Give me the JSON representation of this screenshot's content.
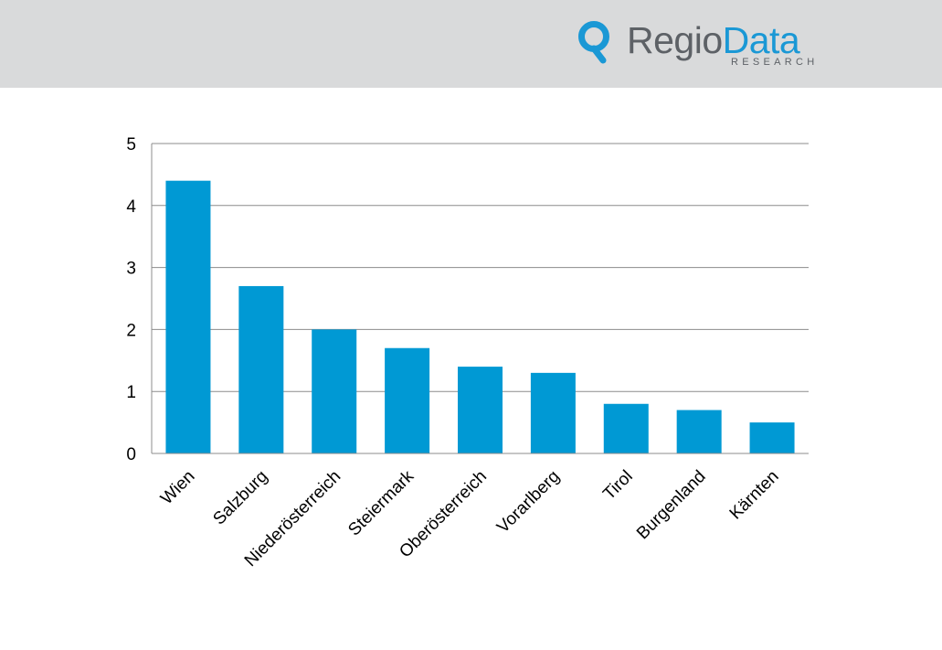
{
  "brand": {
    "name_part1": "Regio",
    "name_part2": "Data",
    "sub": "RESEARCH",
    "colors": {
      "primary": "#1a98d5",
      "grey": "#5d6166",
      "header_bg": "#d9dadb"
    },
    "icon": "location-pin-icon"
  },
  "chart_data": {
    "type": "bar",
    "categories": [
      "Wien",
      "Salzburg",
      "Niederösterreich",
      "Steiermark",
      "Oberösterreich",
      "Vorarlberg",
      "Tirol",
      "Burgenland",
      "Kärnten"
    ],
    "values": [
      4.4,
      2.7,
      2.0,
      1.7,
      1.4,
      1.3,
      0.8,
      0.7,
      0.5
    ],
    "ylim": [
      0,
      5
    ],
    "yticks": [
      0,
      1,
      2,
      3,
      4,
      5
    ],
    "grid": true,
    "bar_color": "#0099d4"
  }
}
